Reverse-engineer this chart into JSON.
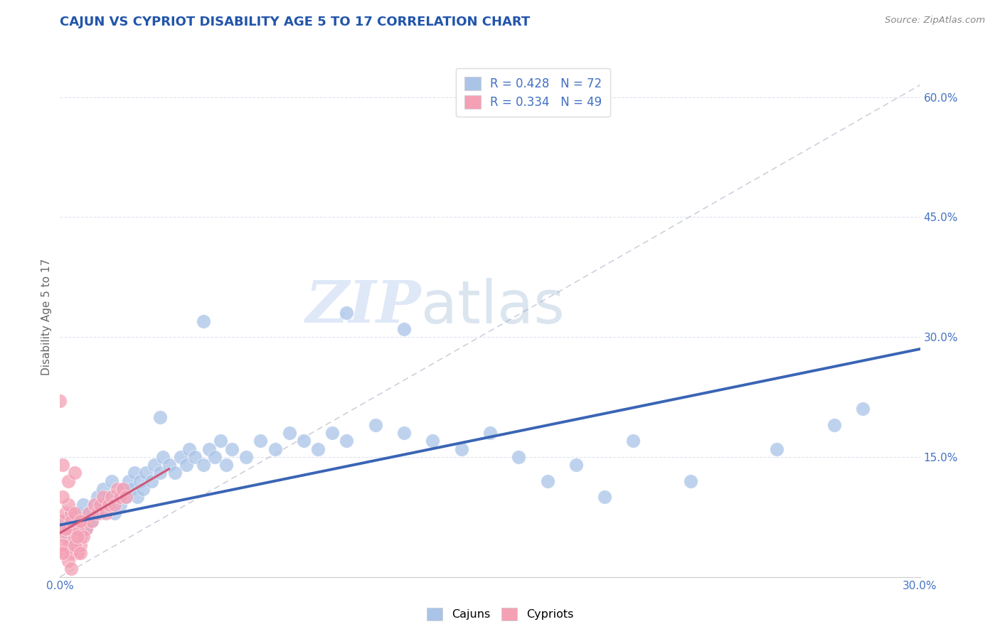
{
  "title": "CAJUN VS CYPRIOT DISABILITY AGE 5 TO 17 CORRELATION CHART",
  "source": "Source: ZipAtlas.com",
  "ylabel": "Disability Age 5 to 17",
  "xmin": 0.0,
  "xmax": 0.3,
  "ymin": 0.0,
  "ymax": 0.65,
  "cajun_color": "#aac4e8",
  "cypriot_color": "#f4a0b5",
  "blue_line_color": "#3a65b5",
  "pink_line_color": "#d05878",
  "ref_line_color": "#c8c8d8",
  "legend_cajun_label": "R = 0.428   N = 72",
  "legend_cypriot_label": "R = 0.334   N = 49",
  "legend_bottom_cajun": "Cajuns",
  "legend_bottom_cypriot": "Cypriots",
  "cajun_scatter": [
    [
      0.001,
      0.06
    ],
    [
      0.002,
      0.07
    ],
    [
      0.003,
      0.05
    ],
    [
      0.004,
      0.04
    ],
    [
      0.005,
      0.06
    ],
    [
      0.006,
      0.08
    ],
    [
      0.007,
      0.07
    ],
    [
      0.008,
      0.09
    ],
    [
      0.009,
      0.06
    ],
    [
      0.01,
      0.08
    ],
    [
      0.011,
      0.07
    ],
    [
      0.012,
      0.09
    ],
    [
      0.013,
      0.1
    ],
    [
      0.014,
      0.08
    ],
    [
      0.015,
      0.11
    ],
    [
      0.016,
      0.09
    ],
    [
      0.017,
      0.1
    ],
    [
      0.018,
      0.12
    ],
    [
      0.019,
      0.08
    ],
    [
      0.02,
      0.1
    ],
    [
      0.021,
      0.09
    ],
    [
      0.022,
      0.11
    ],
    [
      0.023,
      0.1
    ],
    [
      0.024,
      0.12
    ],
    [
      0.025,
      0.11
    ],
    [
      0.026,
      0.13
    ],
    [
      0.027,
      0.1
    ],
    [
      0.028,
      0.12
    ],
    [
      0.029,
      0.11
    ],
    [
      0.03,
      0.13
    ],
    [
      0.032,
      0.12
    ],
    [
      0.033,
      0.14
    ],
    [
      0.035,
      0.13
    ],
    [
      0.036,
      0.15
    ],
    [
      0.038,
      0.14
    ],
    [
      0.04,
      0.13
    ],
    [
      0.042,
      0.15
    ],
    [
      0.044,
      0.14
    ],
    [
      0.045,
      0.16
    ],
    [
      0.047,
      0.15
    ],
    [
      0.05,
      0.14
    ],
    [
      0.052,
      0.16
    ],
    [
      0.054,
      0.15
    ],
    [
      0.056,
      0.17
    ],
    [
      0.058,
      0.14
    ],
    [
      0.06,
      0.16
    ],
    [
      0.065,
      0.15
    ],
    [
      0.07,
      0.17
    ],
    [
      0.075,
      0.16
    ],
    [
      0.08,
      0.18
    ],
    [
      0.085,
      0.17
    ],
    [
      0.09,
      0.16
    ],
    [
      0.095,
      0.18
    ],
    [
      0.1,
      0.17
    ],
    [
      0.11,
      0.19
    ],
    [
      0.12,
      0.18
    ],
    [
      0.13,
      0.17
    ],
    [
      0.14,
      0.16
    ],
    [
      0.15,
      0.18
    ],
    [
      0.16,
      0.15
    ],
    [
      0.17,
      0.12
    ],
    [
      0.18,
      0.14
    ],
    [
      0.19,
      0.1
    ],
    [
      0.2,
      0.17
    ],
    [
      0.22,
      0.12
    ],
    [
      0.25,
      0.16
    ],
    [
      0.27,
      0.19
    ],
    [
      0.28,
      0.21
    ],
    [
      0.1,
      0.33
    ],
    [
      0.12,
      0.31
    ],
    [
      0.035,
      0.2
    ],
    [
      0.05,
      0.32
    ]
  ],
  "cypriot_scatter": [
    [
      0.0,
      0.22
    ],
    [
      0.001,
      0.14
    ],
    [
      0.002,
      0.05
    ],
    [
      0.003,
      0.04
    ],
    [
      0.004,
      0.06
    ],
    [
      0.005,
      0.05
    ],
    [
      0.006,
      0.07
    ],
    [
      0.007,
      0.05
    ],
    [
      0.008,
      0.07
    ],
    [
      0.009,
      0.06
    ],
    [
      0.01,
      0.08
    ],
    [
      0.011,
      0.07
    ],
    [
      0.012,
      0.09
    ],
    [
      0.013,
      0.08
    ],
    [
      0.014,
      0.09
    ],
    [
      0.015,
      0.1
    ],
    [
      0.016,
      0.08
    ],
    [
      0.017,
      0.09
    ],
    [
      0.018,
      0.1
    ],
    [
      0.019,
      0.09
    ],
    [
      0.02,
      0.11
    ],
    [
      0.021,
      0.1
    ],
    [
      0.022,
      0.11
    ],
    [
      0.023,
      0.1
    ],
    [
      0.003,
      0.12
    ],
    [
      0.005,
      0.13
    ],
    [
      0.006,
      0.03
    ],
    [
      0.004,
      0.03
    ],
    [
      0.007,
      0.04
    ],
    [
      0.001,
      0.07
    ],
    [
      0.002,
      0.03
    ],
    [
      0.003,
      0.02
    ],
    [
      0.004,
      0.01
    ],
    [
      0.002,
      0.08
    ],
    [
      0.001,
      0.04
    ],
    [
      0.003,
      0.06
    ],
    [
      0.004,
      0.08
    ],
    [
      0.005,
      0.04
    ],
    [
      0.006,
      0.06
    ],
    [
      0.007,
      0.03
    ],
    [
      0.008,
      0.05
    ],
    [
      0.003,
      0.09
    ],
    [
      0.002,
      0.06
    ],
    [
      0.001,
      0.03
    ],
    [
      0.004,
      0.07
    ],
    [
      0.005,
      0.08
    ],
    [
      0.006,
      0.05
    ],
    [
      0.007,
      0.07
    ],
    [
      0.001,
      0.1
    ]
  ],
  "cajun_regline_x": [
    0.0,
    0.3
  ],
  "cajun_regline_y": [
    0.065,
    0.285
  ],
  "cypriot_regline_x": [
    0.0,
    0.038
  ],
  "cypriot_regline_y": [
    0.055,
    0.135
  ],
  "ref_line_x": [
    0.0,
    0.3
  ],
  "ref_line_y": [
    0.0,
    0.615
  ],
  "watermark_zip": "ZIP",
  "watermark_atlas": "atlas",
  "background_color": "#ffffff",
  "grid_color": "#dde4ee",
  "title_color": "#2255aa",
  "axis_label_color": "#666666",
  "tick_color": "#4472c4",
  "source_color": "#888888"
}
